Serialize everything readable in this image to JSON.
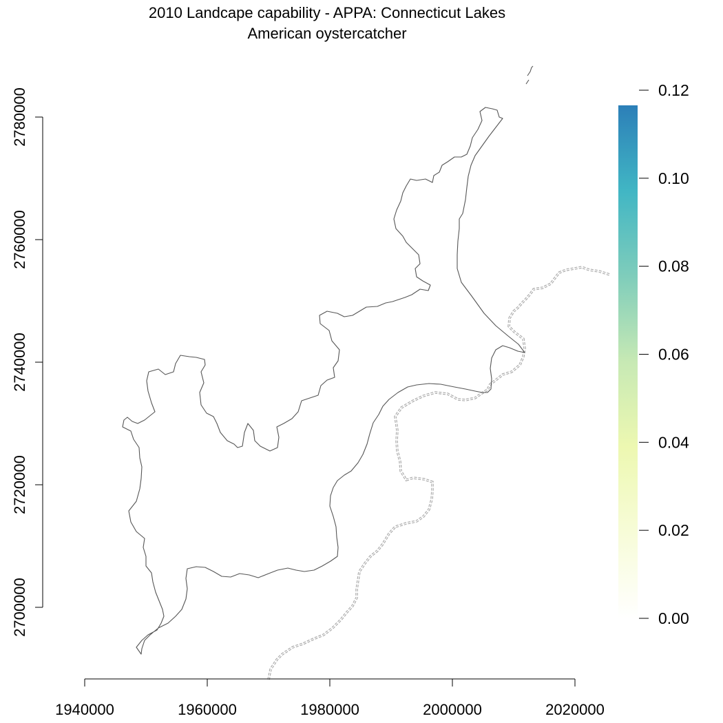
{
  "title": {
    "line1": "2010 Landcape capability - APPA: Connecticut Lakes",
    "line2": "American oystercatcher"
  },
  "chart_data": {
    "type": "heatmap",
    "x_ticks": [
      1940000,
      1960000,
      1980000,
      2000000,
      2020000
    ],
    "y_ticks": [
      2700000,
      2720000,
      2740000,
      2760000,
      2780000
    ],
    "xlim": [
      1940000,
      2020000
    ],
    "ylim": [
      2700000,
      2780000
    ],
    "legend": {
      "placement": "right",
      "min": 0.0,
      "max": 0.12,
      "ticks": [
        "0.00",
        "0.02",
        "0.04",
        "0.06",
        "0.08",
        "0.10",
        "0.12"
      ],
      "colors": [
        "#ffffff",
        "#f7fcd8",
        "#edf8b1",
        "#c7e9b4",
        "#7fcdbb",
        "#41b6c4",
        "#2c7fb8"
      ]
    },
    "layers": [
      {
        "id": "appa-boundary",
        "style": "solid",
        "color": "#444444"
      },
      {
        "id": "state-border",
        "style": "double-dashed",
        "color": "#aaaaaa"
      }
    ]
  }
}
